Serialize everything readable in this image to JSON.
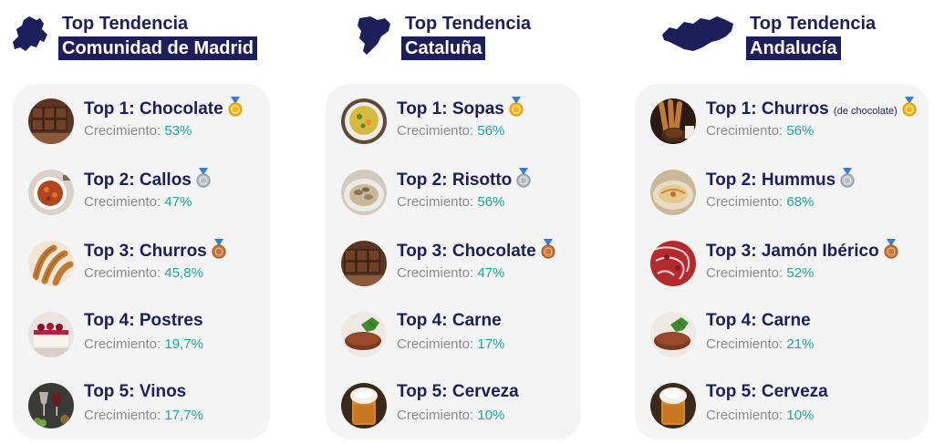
{
  "title_prefix": "Top Tendencia",
  "growth_label": "Crecimiento:",
  "regions": [
    {
      "name": "Comunidad de Madrid",
      "items": [
        {
          "title": "Top 1: Chocolate",
          "note": "",
          "growth": "53%",
          "medal": "gold",
          "food_icon": "chocolate-icon"
        },
        {
          "title": "Top 2: Callos",
          "note": "",
          "growth": "47%",
          "medal": "silver",
          "food_icon": "callos-icon"
        },
        {
          "title": "Top 3: Churros",
          "note": "",
          "growth": "45,8%",
          "medal": "bronze",
          "food_icon": "churros-icon"
        },
        {
          "title": "Top 4: Postres",
          "note": "",
          "growth": "19,7%",
          "medal": "",
          "food_icon": "postres-icon"
        },
        {
          "title": "Top 5: Vinos",
          "note": "",
          "growth": "17,7%",
          "medal": "",
          "food_icon": "vinos-icon"
        }
      ]
    },
    {
      "name": "Cataluña",
      "items": [
        {
          "title": "Top 1: Sopas",
          "note": "",
          "growth": "56%",
          "medal": "gold",
          "food_icon": "sopas-icon"
        },
        {
          "title": "Top 2: Risotto",
          "note": "",
          "growth": "56%",
          "medal": "silver",
          "food_icon": "risotto-icon"
        },
        {
          "title": "Top 3: Chocolate",
          "note": "",
          "growth": "47%",
          "medal": "bronze",
          "food_icon": "chocolate-icon"
        },
        {
          "title": "Top 4: Carne",
          "note": "",
          "growth": "17%",
          "medal": "",
          "food_icon": "carne-icon"
        },
        {
          "title": "Top 5: Cerveza",
          "note": "",
          "growth": "10%",
          "medal": "",
          "food_icon": "cerveza-icon"
        }
      ]
    },
    {
      "name": "Andalucía",
      "items": [
        {
          "title": "Top 1: Churros",
          "note": "(de chocolate)",
          "growth": "56%",
          "medal": "gold",
          "food_icon": "churros-chocolate-icon"
        },
        {
          "title": "Top 2: Hummus",
          "note": "",
          "growth": "68%",
          "medal": "silver",
          "food_icon": "hummus-icon"
        },
        {
          "title": "Top 3: Jamón Ibérico",
          "note": "",
          "growth": "52%",
          "medal": "bronze",
          "food_icon": "jamon-icon"
        },
        {
          "title": "Top 4: Carne",
          "note": "",
          "growth": "21%",
          "medal": "",
          "food_icon": "carne-icon"
        },
        {
          "title": "Top 5: Cerveza",
          "note": "",
          "growth": "10%",
          "medal": "",
          "food_icon": "cerveza-icon"
        }
      ]
    }
  ],
  "colors": {
    "navy": "#1e1e5a",
    "teal": "#1aa79a",
    "grey_text": "#8a8a8a",
    "card_bg": "#f4f4f4",
    "gold": "#f2b61f",
    "silver": "#b9bcc2",
    "bronze": "#c9773a"
  }
}
